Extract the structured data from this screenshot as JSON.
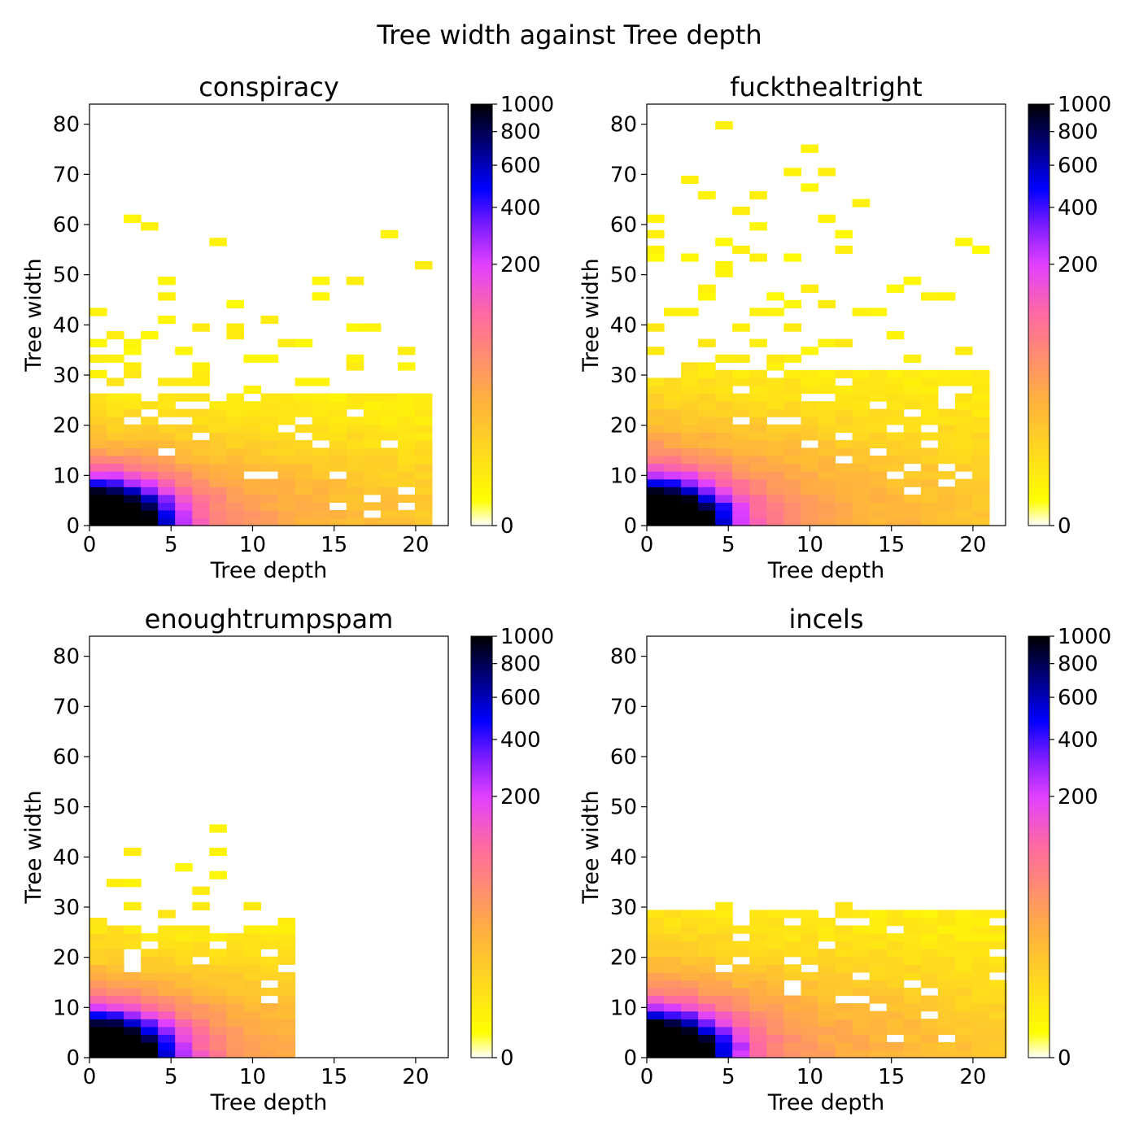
{
  "figure_title": "Tree width against Tree depth",
  "colors": {
    "colormap": [
      "#ffffff",
      "#ffff00",
      "#ffb040",
      "#ff6aa0",
      "#e040ff",
      "#8a20ff",
      "#0000ff",
      "#000080",
      "#000000"
    ],
    "axis": "#000000"
  },
  "chart_data": [
    {
      "type": "heatmap",
      "title": "conspiracy",
      "xlabel": "Tree depth",
      "ylabel": "Tree width",
      "xlim": [
        0,
        22
      ],
      "ylim": [
        0,
        84
      ],
      "xticks": [
        "0",
        "5",
        "10",
        "15",
        "20"
      ],
      "yticks": [
        "0",
        "10",
        "20",
        "30",
        "40",
        "50",
        "60",
        "70",
        "80"
      ],
      "colorbar": {
        "ticks": [
          "0",
          "200",
          "400",
          "600",
          "800",
          "1000"
        ],
        "range": [
          0,
          1000
        ]
      },
      "spread": {
        "depth_max": 21,
        "width_max": 65,
        "bulk_width": 25
      }
    },
    {
      "type": "heatmap",
      "title": "fuckthealtright",
      "xlabel": "Tree depth",
      "ylabel": "Tree width",
      "xlim": [
        0,
        22
      ],
      "ylim": [
        0,
        84
      ],
      "xticks": [
        "0",
        "5",
        "10",
        "15",
        "20"
      ],
      "yticks": [
        "0",
        "10",
        "20",
        "30",
        "40",
        "50",
        "60",
        "70",
        "80"
      ],
      "colorbar": {
        "ticks": [
          "0",
          "200",
          "400",
          "600",
          "800",
          "1000"
        ],
        "range": [
          0,
          1000
        ]
      },
      "spread": {
        "depth_max": 21,
        "width_max": 84,
        "bulk_width": 30
      }
    },
    {
      "type": "heatmap",
      "title": "enoughtrumpspam",
      "xlabel": "Tree depth",
      "ylabel": "Tree width",
      "xlim": [
        0,
        22
      ],
      "ylim": [
        0,
        84
      ],
      "xticks": [
        "0",
        "5",
        "10",
        "15",
        "20"
      ],
      "yticks": [
        "0",
        "10",
        "20",
        "30",
        "40",
        "50",
        "60",
        "70",
        "80"
      ],
      "colorbar": {
        "ticks": [
          "0",
          "200",
          "400",
          "600",
          "800",
          "1000"
        ],
        "range": [
          0,
          1000
        ]
      },
      "spread": {
        "depth_max": 12,
        "width_max": 48,
        "bulk_width": 25
      }
    },
    {
      "type": "heatmap",
      "title": "incels",
      "xlabel": "Tree depth",
      "ylabel": "Tree width",
      "xlim": [
        0,
        22
      ],
      "ylim": [
        0,
        84
      ],
      "xticks": [
        "0",
        "5",
        "10",
        "15",
        "20"
      ],
      "yticks": [
        "0",
        "10",
        "20",
        "30",
        "40",
        "50",
        "60",
        "70",
        "80"
      ],
      "colorbar": {
        "ticks": [
          "0",
          "200",
          "400",
          "600",
          "800",
          "1000"
        ],
        "range": [
          0,
          1000
        ]
      },
      "spread": {
        "depth_max": 22,
        "width_max": 32,
        "bulk_width": 28
      }
    }
  ]
}
